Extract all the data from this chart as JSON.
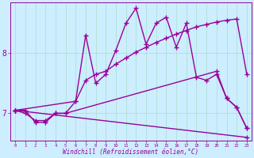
{
  "xlabel": "Windchill (Refroidissement éolien,°C)",
  "bg_color": "#cceeff",
  "line_color": "#990099",
  "grid_color": "#aaddcc",
  "xlim": [
    -0.5,
    23.5
  ],
  "ylim": [
    6.55,
    8.85
  ],
  "xticks": [
    0,
    1,
    2,
    3,
    4,
    5,
    6,
    7,
    8,
    9,
    10,
    11,
    12,
    13,
    14,
    15,
    16,
    17,
    18,
    19,
    20,
    21,
    22,
    23
  ],
  "yticks": [
    7,
    8
  ],
  "line1_x": [
    0,
    1,
    2,
    3,
    4,
    5,
    6,
    7,
    8,
    9,
    10,
    11,
    12,
    13,
    14,
    15,
    16,
    17,
    18,
    19,
    20,
    21,
    22,
    23
  ],
  "line1_y": [
    7.05,
    7.05,
    6.85,
    6.85,
    7.0,
    7.0,
    7.2,
    8.3,
    7.5,
    7.65,
    8.05,
    8.5,
    8.75,
    8.15,
    8.5,
    8.6,
    8.1,
    8.5,
    7.6,
    7.55,
    7.65,
    7.25,
    7.1,
    6.75
  ],
  "line2_x": [
    0,
    6,
    7,
    8,
    9,
    10,
    11,
    12,
    13,
    14,
    15,
    16,
    17,
    18,
    19,
    20,
    21,
    22,
    23
  ],
  "line2_y": [
    7.05,
    7.2,
    7.55,
    7.65,
    7.7,
    7.82,
    7.92,
    8.02,
    8.1,
    8.18,
    8.25,
    8.32,
    8.38,
    8.44,
    8.48,
    8.52,
    8.55,
    8.57,
    7.65
  ],
  "line3_x": [
    0,
    1,
    2,
    3,
    4,
    5,
    20,
    21,
    22,
    23
  ],
  "line3_y": [
    7.05,
    7.0,
    6.88,
    6.88,
    7.0,
    7.0,
    7.7,
    7.25,
    7.1,
    6.75
  ],
  "line4_x": [
    0,
    23
  ],
  "line4_y": [
    7.05,
    6.6
  ],
  "marker": "+",
  "markersize": 4,
  "linewidth": 1.0
}
